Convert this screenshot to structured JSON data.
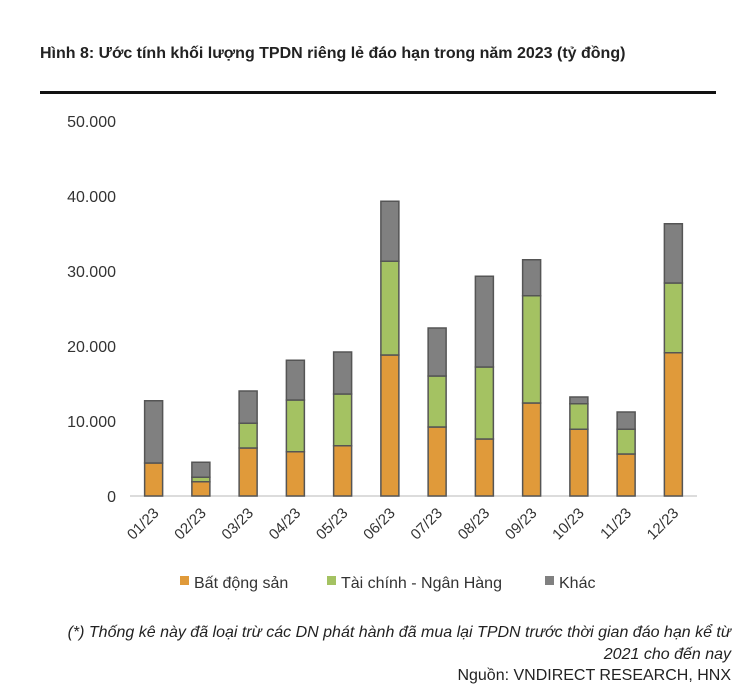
{
  "chart_data": {
    "type": "bar",
    "stacked": true,
    "title": "Hình 8: Ước tính khối lượng TPDN riêng lẻ đáo hạn trong năm 2023 (tỷ đồng)",
    "categories": [
      "01/23",
      "02/23",
      "03/23",
      "04/23",
      "05/23",
      "06/23",
      "07/23",
      "08/23",
      "09/23",
      "10/23",
      "11/23",
      "12/23"
    ],
    "series": [
      {
        "name": "Bất động sản",
        "color": "#E09A3A",
        "values": [
          4400,
          1900,
          6400,
          5900,
          6700,
          18800,
          9200,
          7600,
          12400,
          8900,
          5600,
          19100
        ]
      },
      {
        "name": "Tài chính - Ngân Hàng",
        "color": "#A4C262",
        "values": [
          0,
          600,
          3300,
          6900,
          6900,
          12500,
          6800,
          9600,
          14300,
          3400,
          3300,
          9300
        ]
      },
      {
        "name": "Khác",
        "color": "#808080",
        "values": [
          8300,
          2000,
          4300,
          5300,
          5600,
          8000,
          6400,
          12100,
          4800,
          900,
          2300,
          7900
        ]
      }
    ],
    "yticks": [
      "0",
      "10.000",
      "20.000",
      "30.000",
      "40.000",
      "50.000"
    ],
    "ylim": [
      0,
      50000
    ],
    "legend": "bottom",
    "grid": false
  },
  "footnote": "(*) Thống kê này đã loại trừ các DN phát hành đã mua lại TPDN trước thời gian đáo hạn kể từ 2021 cho đến nay",
  "source": "Nguồn: VNDIRECT RESEARCH, HNX"
}
